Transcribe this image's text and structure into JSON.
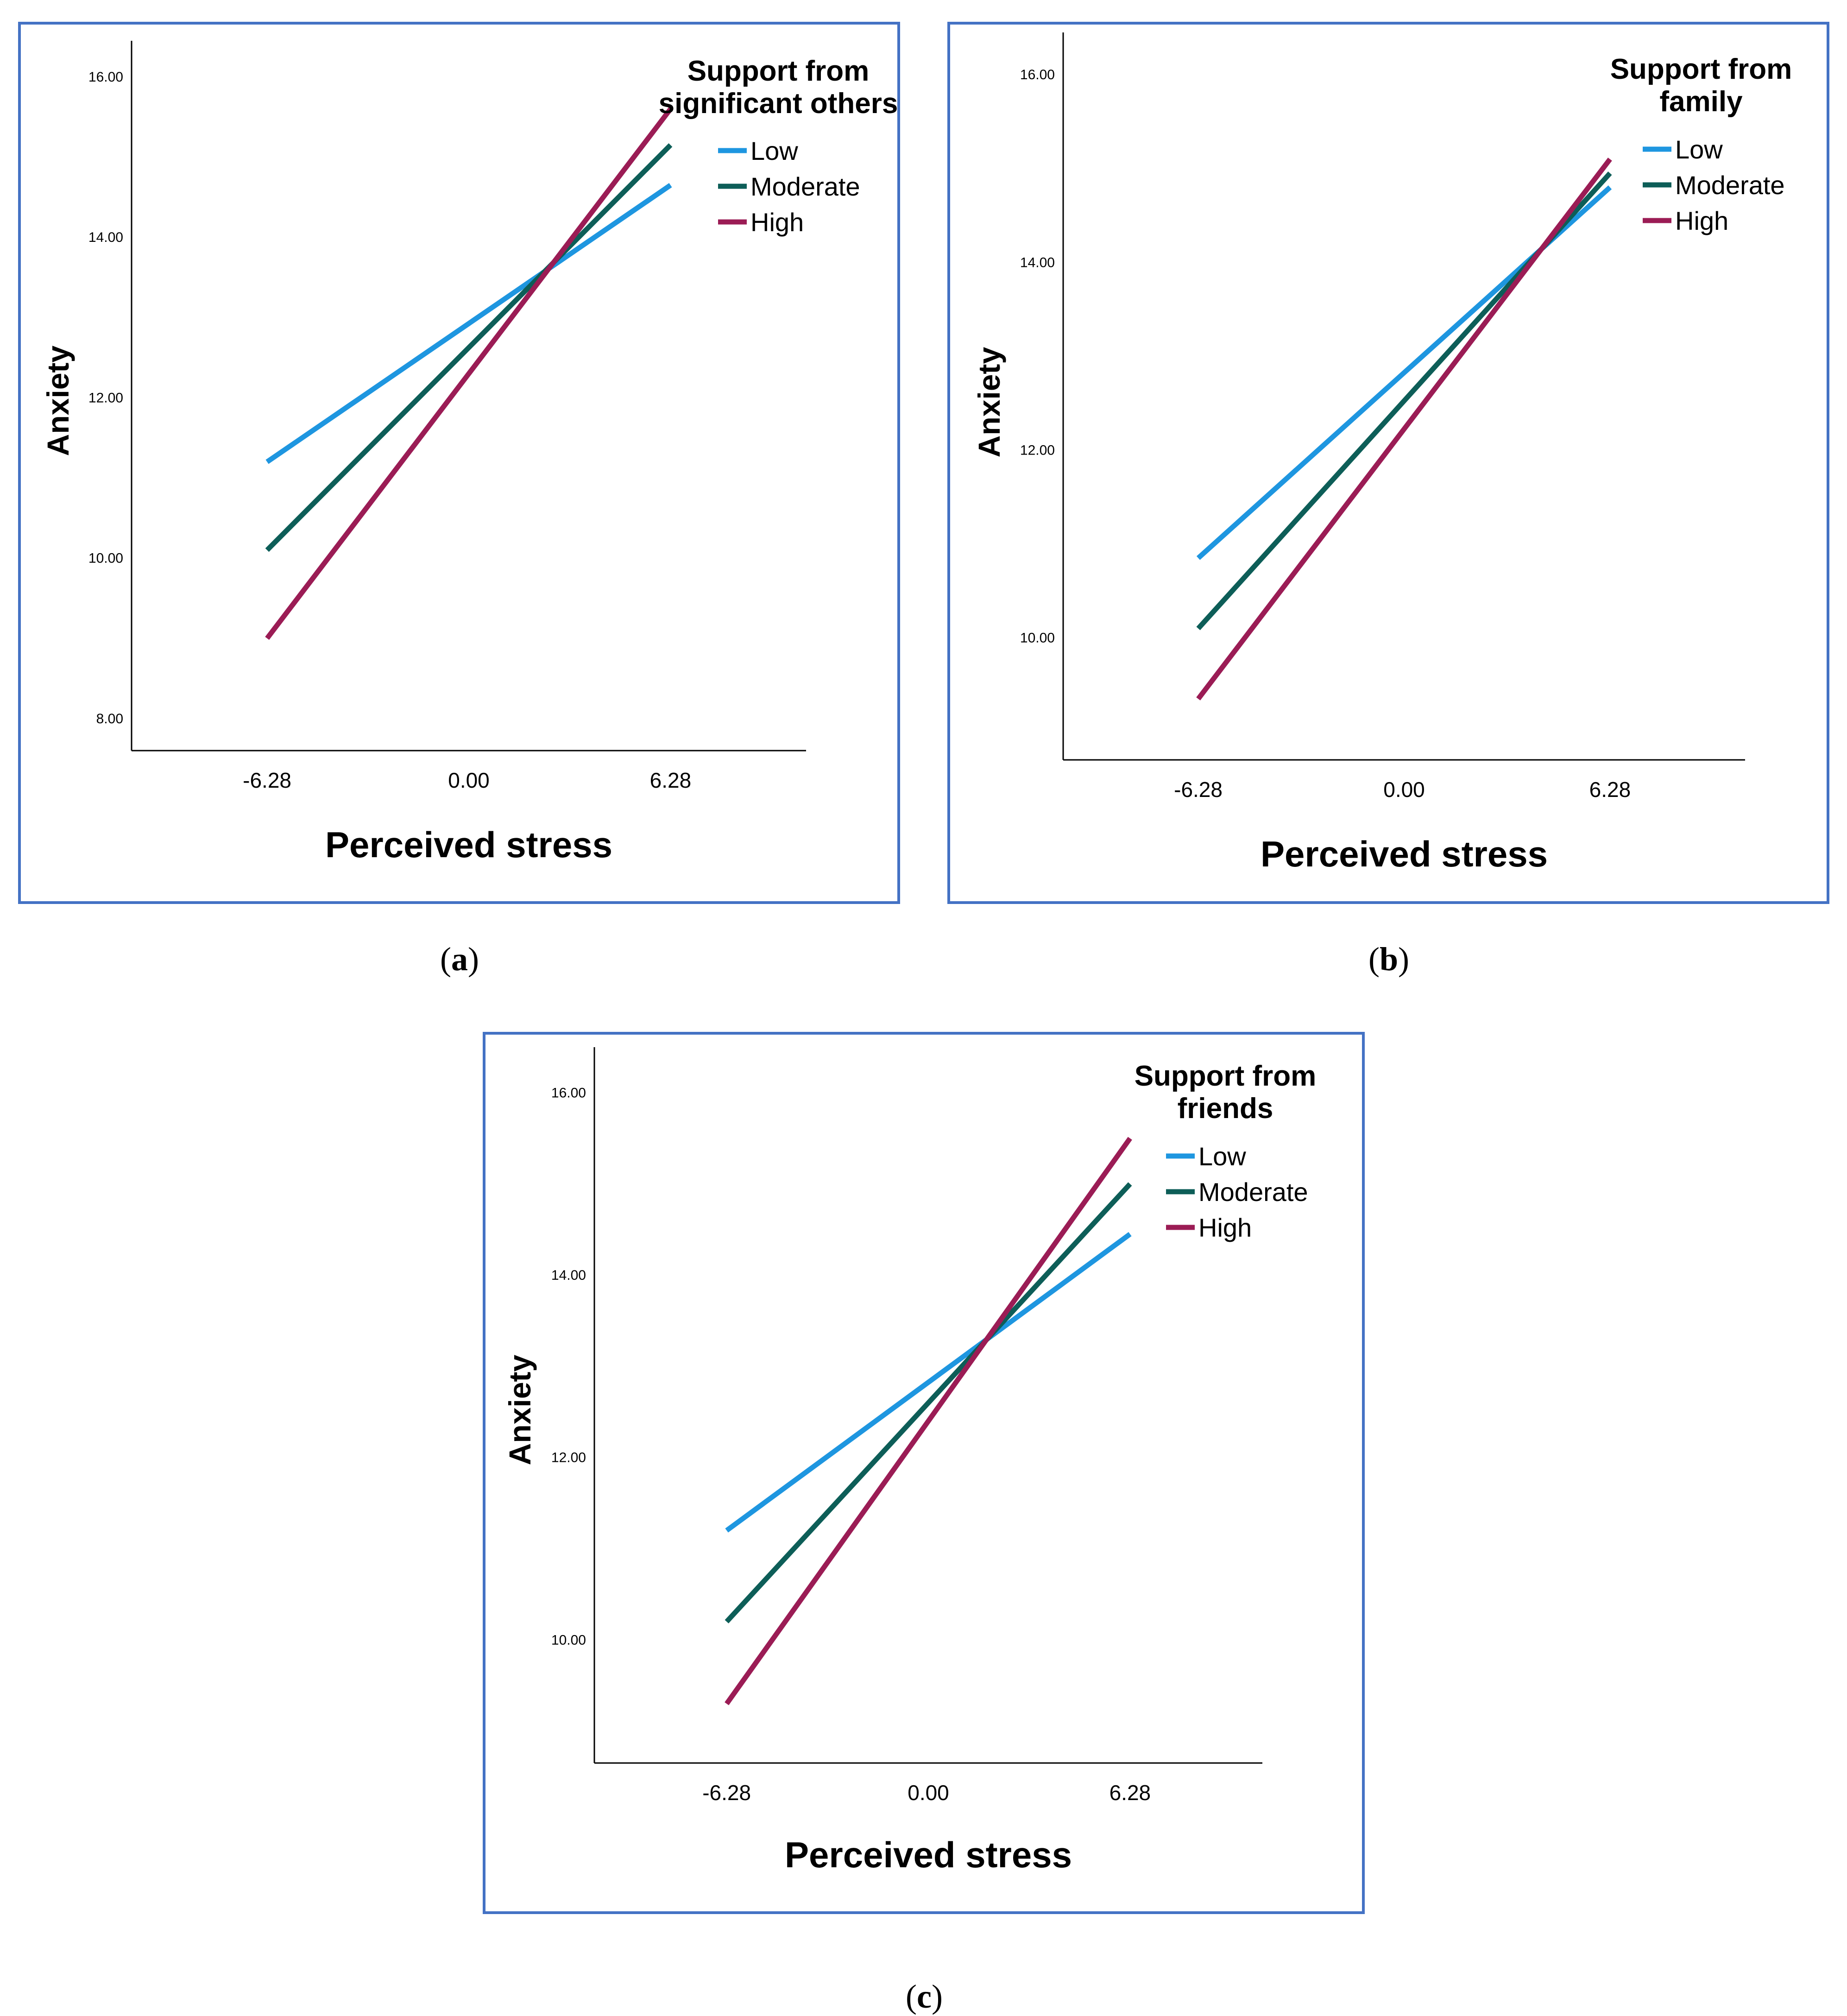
{
  "chart_data": [
    {
      "type": "line",
      "caption_letter": "a",
      "xlabel": "Perceived stress",
      "ylabel": "Anxiety",
      "x": [
        -6.28,
        6.28
      ],
      "xtick_labels": [
        "-6.28",
        "0.00",
        "6.28"
      ],
      "xtick_values": [
        -6.28,
        0,
        6.28
      ],
      "yticks": [
        "8.00",
        "10.00",
        "12.00",
        "14.00",
        "16.00"
      ],
      "ytick_values": [
        8,
        10,
        12,
        14,
        16
      ],
      "xlim": [
        -10.5,
        10.5
      ],
      "ylim": [
        7.6,
        16.45
      ],
      "legend_title": [
        "Support from",
        "significant others"
      ],
      "series": [
        {
          "name": "Low",
          "color": "#1e96e0",
          "values": [
            11.2,
            14.65
          ]
        },
        {
          "name": "Moderate",
          "color": "#0d5e58",
          "values": [
            10.1,
            15.15
          ]
        },
        {
          "name": "High",
          "color": "#9b1c55",
          "values": [
            9.0,
            15.6
          ]
        }
      ]
    },
    {
      "type": "line",
      "caption_letter": "b",
      "xlabel": "Perceived stress",
      "ylabel": "Anxiety",
      "x": [
        -6.28,
        6.28
      ],
      "xtick_labels": [
        "-6.28",
        "0.00",
        "6.28"
      ],
      "xtick_values": [
        -6.28,
        0,
        6.28
      ],
      "yticks": [
        "10.00",
        "12.00",
        "14.00",
        "16.00"
      ],
      "ytick_values": [
        10,
        12,
        14,
        16
      ],
      "xlim": [
        -10.4,
        10.4
      ],
      "ylim": [
        8.7,
        16.45
      ],
      "legend_title": [
        "Support from",
        "family"
      ],
      "series": [
        {
          "name": "Low",
          "color": "#1e96e0",
          "values": [
            10.85,
            14.8
          ]
        },
        {
          "name": "Moderate",
          "color": "#0d5e58",
          "values": [
            10.1,
            14.95
          ]
        },
        {
          "name": "High",
          "color": "#9b1c55",
          "values": [
            9.35,
            15.1
          ]
        }
      ]
    },
    {
      "type": "line",
      "caption_letter": "c",
      "xlabel": "Perceived stress",
      "ylabel": "Anxiety",
      "x": [
        -6.28,
        6.28
      ],
      "xtick_labels": [
        "-6.28",
        "0.00",
        "6.28"
      ],
      "xtick_values": [
        -6.28,
        0,
        6.28
      ],
      "yticks": [
        "10.00",
        "12.00",
        "14.00",
        "16.00"
      ],
      "ytick_values": [
        10,
        12,
        14,
        16
      ],
      "xlim": [
        -10.4,
        10.4
      ],
      "ylim": [
        8.65,
        16.5
      ],
      "legend_title": [
        "Support from",
        "friends"
      ],
      "series": [
        {
          "name": "Low",
          "color": "#1e96e0",
          "values": [
            11.2,
            14.45
          ]
        },
        {
          "name": "Moderate",
          "color": "#0d5e58",
          "values": [
            10.2,
            15.0
          ]
        },
        {
          "name": "High",
          "color": "#9b1c55",
          "values": [
            9.3,
            15.5
          ]
        }
      ]
    }
  ]
}
